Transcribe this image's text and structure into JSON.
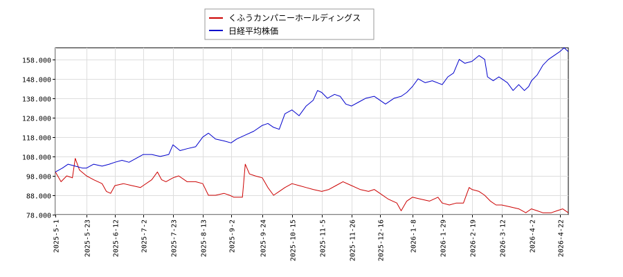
{
  "chart_data": {
    "type": "line",
    "legend_placement": "top-center",
    "grid": true,
    "x_ticks": [
      "2025-5-1",
      "2025-5-23",
      "2025-6-12",
      "2025-7-2",
      "2025-7-23",
      "2025-8-13",
      "2025-9-2",
      "2025-9-24",
      "2025-10-15",
      "2025-11-5",
      "2025-11-26",
      "2025-12-16",
      "2026-1-8",
      "2026-1-29",
      "2026-2-19",
      "2026-3-12",
      "2026-4-2",
      "2026-4-22"
    ],
    "y_ticks": [
      "78.000",
      "88.000",
      "98.000",
      "108.000",
      "118.000",
      "128.000",
      "138.000",
      "148.000",
      "158.000"
    ],
    "ylim": [
      78,
      164
    ],
    "series": [
      {
        "name": "くふうカンパニーホールディングス",
        "color": "#cc0000",
        "points": [
          [
            "2025-5-1",
            100
          ],
          [
            "2025-5-5",
            95
          ],
          [
            "2025-5-9",
            98
          ],
          [
            "2025-5-13",
            97
          ],
          [
            "2025-5-15",
            107
          ],
          [
            "2025-5-18",
            101
          ],
          [
            "2025-5-23",
            98
          ],
          [
            "2025-5-28",
            96
          ],
          [
            "2025-6-3",
            94
          ],
          [
            "2025-6-6",
            90
          ],
          [
            "2025-6-9",
            89
          ],
          [
            "2025-6-12",
            93
          ],
          [
            "2025-6-18",
            94
          ],
          [
            "2025-6-24",
            93
          ],
          [
            "2025-6-30",
            92
          ],
          [
            "2025-7-2",
            93
          ],
          [
            "2025-7-8",
            96
          ],
          [
            "2025-7-12",
            100
          ],
          [
            "2025-7-15",
            96
          ],
          [
            "2025-7-18",
            95
          ],
          [
            "2025-7-23",
            97
          ],
          [
            "2025-7-27",
            98
          ],
          [
            "2025-8-2",
            95
          ],
          [
            "2025-8-8",
            95
          ],
          [
            "2025-8-13",
            94
          ],
          [
            "2025-8-17",
            88
          ],
          [
            "2025-8-22",
            88
          ],
          [
            "2025-8-28",
            89
          ],
          [
            "2025-9-1",
            88
          ],
          [
            "2025-9-4",
            87
          ],
          [
            "2025-9-10",
            87
          ],
          [
            "2025-9-12",
            104
          ],
          [
            "2025-9-15",
            99
          ],
          [
            "2025-9-19",
            98
          ],
          [
            "2025-9-24",
            97
          ],
          [
            "2025-9-28",
            92
          ],
          [
            "2025-10-2",
            88
          ],
          [
            "2025-10-6",
            90
          ],
          [
            "2025-10-10",
            92
          ],
          [
            "2025-10-15",
            94
          ],
          [
            "2025-10-20",
            93
          ],
          [
            "2025-10-25",
            92
          ],
          [
            "2025-10-30",
            91
          ],
          [
            "2025-11-5",
            90
          ],
          [
            "2025-11-10",
            91
          ],
          [
            "2025-11-15",
            93
          ],
          [
            "2025-11-20",
            95
          ],
          [
            "2025-11-26",
            93
          ],
          [
            "2025-12-2",
            91
          ],
          [
            "2025-12-8",
            90
          ],
          [
            "2025-12-12",
            91
          ],
          [
            "2025-12-16",
            89
          ],
          [
            "2025-12-22",
            86
          ],
          [
            "2025-12-28",
            84
          ],
          [
            "2025-12-31",
            80
          ],
          [
            "2026-1-4",
            85
          ],
          [
            "2026-1-8",
            87
          ],
          [
            "2026-1-14",
            86
          ],
          [
            "2026-1-20",
            85
          ],
          [
            "2026-1-26",
            87
          ],
          [
            "2026-1-29",
            84
          ],
          [
            "2026-2-3",
            83
          ],
          [
            "2026-2-8",
            84
          ],
          [
            "2026-2-13",
            84
          ],
          [
            "2026-2-17",
            92
          ],
          [
            "2026-2-19",
            91
          ],
          [
            "2026-2-24",
            90
          ],
          [
            "2026-2-28",
            88
          ],
          [
            "2026-3-4",
            85
          ],
          [
            "2026-3-8",
            83
          ],
          [
            "2026-3-12",
            83
          ],
          [
            "2026-3-18",
            82
          ],
          [
            "2026-3-24",
            81
          ],
          [
            "2026-3-29",
            79
          ],
          [
            "2026-4-2",
            81
          ],
          [
            "2026-4-6",
            80
          ],
          [
            "2026-4-10",
            79
          ],
          [
            "2026-4-16",
            79
          ],
          [
            "2026-4-20",
            80
          ],
          [
            "2026-4-24",
            81
          ],
          [
            "2026-4-28",
            79
          ]
        ]
      },
      {
        "name": "日経平均株価",
        "color": "#0000cc",
        "points": [
          [
            "2025-5-1",
            100
          ],
          [
            "2025-5-6",
            102
          ],
          [
            "2025-5-10",
            104
          ],
          [
            "2025-5-15",
            103
          ],
          [
            "2025-5-20",
            102
          ],
          [
            "2025-5-23",
            102
          ],
          [
            "2025-5-28",
            104
          ],
          [
            "2025-6-3",
            103
          ],
          [
            "2025-6-8",
            104
          ],
          [
            "2025-6-12",
            105
          ],
          [
            "2025-6-17",
            106
          ],
          [
            "2025-6-22",
            105
          ],
          [
            "2025-6-27",
            107
          ],
          [
            "2025-7-2",
            109
          ],
          [
            "2025-7-8",
            109
          ],
          [
            "2025-7-14",
            108
          ],
          [
            "2025-7-20",
            109
          ],
          [
            "2025-7-23",
            114
          ],
          [
            "2025-7-28",
            111
          ],
          [
            "2025-8-2",
            112
          ],
          [
            "2025-8-8",
            113
          ],
          [
            "2025-8-13",
            118
          ],
          [
            "2025-8-17",
            120
          ],
          [
            "2025-8-22",
            117
          ],
          [
            "2025-8-28",
            116
          ],
          [
            "2025-9-2",
            115
          ],
          [
            "2025-9-6",
            117
          ],
          [
            "2025-9-12",
            119
          ],
          [
            "2025-9-18",
            121
          ],
          [
            "2025-9-24",
            124
          ],
          [
            "2025-9-28",
            125
          ],
          [
            "2025-10-2",
            123
          ],
          [
            "2025-10-6",
            122
          ],
          [
            "2025-10-10",
            130
          ],
          [
            "2025-10-15",
            132
          ],
          [
            "2025-10-20",
            129
          ],
          [
            "2025-10-25",
            134
          ],
          [
            "2025-10-30",
            137
          ],
          [
            "2025-11-2",
            142
          ],
          [
            "2025-11-5",
            141
          ],
          [
            "2025-11-9",
            138
          ],
          [
            "2025-11-14",
            140
          ],
          [
            "2025-11-18",
            139
          ],
          [
            "2025-11-22",
            135
          ],
          [
            "2025-11-26",
            134
          ],
          [
            "2025-12-1",
            136
          ],
          [
            "2025-12-6",
            138
          ],
          [
            "2025-12-12",
            139
          ],
          [
            "2025-12-16",
            137
          ],
          [
            "2025-12-20",
            135
          ],
          [
            "2025-12-26",
            138
          ],
          [
            "2025-12-31",
            139
          ],
          [
            "2026-1-4",
            141
          ],
          [
            "2026-1-8",
            144
          ],
          [
            "2026-1-12",
            148
          ],
          [
            "2026-1-17",
            146
          ],
          [
            "2026-1-22",
            147
          ],
          [
            "2026-1-29",
            145
          ],
          [
            "2026-2-2",
            149
          ],
          [
            "2026-2-6",
            151
          ],
          [
            "2026-2-10",
            158
          ],
          [
            "2026-2-14",
            156
          ],
          [
            "2026-2-19",
            157
          ],
          [
            "2026-2-24",
            160
          ],
          [
            "2026-2-28",
            158
          ],
          [
            "2026-3-2",
            149
          ],
          [
            "2026-3-6",
            147
          ],
          [
            "2026-3-10",
            149
          ],
          [
            "2026-3-12",
            148
          ],
          [
            "2026-3-16",
            146
          ],
          [
            "2026-3-20",
            142
          ],
          [
            "2026-3-24",
            145
          ],
          [
            "2026-3-28",
            142
          ],
          [
            "2026-3-31",
            144
          ],
          [
            "2026-4-2",
            147
          ],
          [
            "2026-4-6",
            150
          ],
          [
            "2026-4-10",
            155
          ],
          [
            "2026-4-14",
            158
          ],
          [
            "2026-4-18",
            160
          ],
          [
            "2026-4-22",
            162
          ],
          [
            "2026-4-25",
            164
          ],
          [
            "2026-4-28",
            162
          ]
        ]
      }
    ]
  }
}
